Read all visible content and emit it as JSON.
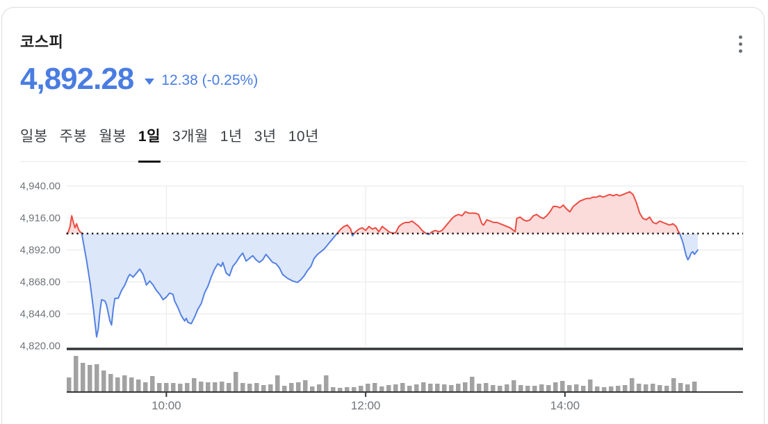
{
  "header": {
    "title": "코스피",
    "price": "4,892.28",
    "change": "12.38 (-0.25%)",
    "direction": "down",
    "accent_color": "#4a7de2"
  },
  "menu": {
    "more_icon": "kebab-vertical-three-dots"
  },
  "tabs": {
    "items": [
      {
        "label": "일봉",
        "active": false
      },
      {
        "label": "주봉",
        "active": false
      },
      {
        "label": "월봉",
        "active": false
      },
      {
        "label": "1일",
        "active": true
      },
      {
        "label": "3개월",
        "active": false
      },
      {
        "label": "1년",
        "active": false
      },
      {
        "label": "3년",
        "active": false
      },
      {
        "label": "10년",
        "active": false
      }
    ]
  },
  "chart_data": {
    "type": "line",
    "subtype": "intraday-vs-prev-close-with-volume",
    "prev_close": 4904.66,
    "last_price": 4892.28,
    "x_unit": "minutes_from_09:00",
    "x_range": [
      0,
      380
    ],
    "x_ticks": [
      {
        "label": "10:00",
        "t": 60
      },
      {
        "label": "12:00",
        "t": 180
      },
      {
        "label": "14:00",
        "t": 300
      }
    ],
    "y_ticks": [
      {
        "label": "4,940.00",
        "value": 4940
      },
      {
        "label": "4,916.00",
        "value": 4916
      },
      {
        "label": "4,892.00",
        "value": 4892
      },
      {
        "label": "4,868.00",
        "value": 4868
      },
      {
        "label": "4,844.00",
        "value": 4844
      },
      {
        "label": "4,820.00",
        "value": 4820
      }
    ],
    "grid": true,
    "baseline_style": "dotted",
    "colors": {
      "above_line": "#ee4b42",
      "above_fill": "#fbdcda",
      "below_line": "#5381e2",
      "below_fill": "#dce7fa",
      "gridline": "#ececec",
      "axis_dark": "#323538",
      "volume_bar": "#a2a2a2",
      "tick_label": "#70757a",
      "baseline_dot": "#141414"
    },
    "points": [
      [
        0,
        4904.5
      ],
      [
        1,
        4906
      ],
      [
        2,
        4910
      ],
      [
        3,
        4918
      ],
      [
        4,
        4913
      ],
      [
        5,
        4909
      ],
      [
        6,
        4912
      ],
      [
        7,
        4908
      ],
      [
        8,
        4906
      ],
      [
        9,
        4905
      ],
      [
        10,
        4898
      ],
      [
        12,
        4884
      ],
      [
        14,
        4868
      ],
      [
        16,
        4849
      ],
      [
        17,
        4838
      ],
      [
        18,
        4827
      ],
      [
        19,
        4833
      ],
      [
        20,
        4846
      ],
      [
        21,
        4855
      ],
      [
        23,
        4854
      ],
      [
        24,
        4851
      ],
      [
        25,
        4845
      ],
      [
        26,
        4839
      ],
      [
        27,
        4836
      ],
      [
        28,
        4848
      ],
      [
        29,
        4856
      ],
      [
        31,
        4856
      ],
      [
        33,
        4862
      ],
      [
        35,
        4866
      ],
      [
        37,
        4872
      ],
      [
        38,
        4874
      ],
      [
        40,
        4872
      ],
      [
        42,
        4875
      ],
      [
        44,
        4878
      ],
      [
        46,
        4874
      ],
      [
        48,
        4866
      ],
      [
        50,
        4869
      ],
      [
        52,
        4866
      ],
      [
        54,
        4862
      ],
      [
        56,
        4859
      ],
      [
        58,
        4855
      ],
      [
        60,
        4857
      ],
      [
        62,
        4860
      ],
      [
        64,
        4859
      ],
      [
        65,
        4854
      ],
      [
        67,
        4849
      ],
      [
        69,
        4843
      ],
      [
        71,
        4839
      ],
      [
        72,
        4841
      ],
      [
        73,
        4838
      ],
      [
        75,
        4837
      ],
      [
        77,
        4842
      ],
      [
        79,
        4848
      ],
      [
        81,
        4852
      ],
      [
        83,
        4860
      ],
      [
        85,
        4865
      ],
      [
        87,
        4872
      ],
      [
        89,
        4878
      ],
      [
        91,
        4882
      ],
      [
        93,
        4880
      ],
      [
        94,
        4883
      ],
      [
        96,
        4875
      ],
      [
        98,
        4873
      ],
      [
        100,
        4880
      ],
      [
        102,
        4883
      ],
      [
        104,
        4887
      ],
      [
        106,
        4890
      ],
      [
        108,
        4884
      ],
      [
        110,
        4886
      ],
      [
        112,
        4888
      ],
      [
        114,
        4885
      ],
      [
        116,
        4883
      ],
      [
        118,
        4885
      ],
      [
        120,
        4889
      ],
      [
        122,
        4886
      ],
      [
        124,
        4883
      ],
      [
        126,
        4882
      ],
      [
        128,
        4879
      ],
      [
        130,
        4874
      ],
      [
        133,
        4871
      ],
      [
        136,
        4869
      ],
      [
        139,
        4868
      ],
      [
        141,
        4870
      ],
      [
        143,
        4873
      ],
      [
        145,
        4877
      ],
      [
        147,
        4880
      ],
      [
        149,
        4886
      ],
      [
        151,
        4889
      ],
      [
        153,
        4891
      ],
      [
        155,
        4893
      ],
      [
        157,
        4896
      ],
      [
        159,
        4899
      ],
      [
        161,
        4902
      ],
      [
        163,
        4905
      ],
      [
        165,
        4908
      ],
      [
        167,
        4910
      ],
      [
        169,
        4911
      ],
      [
        171,
        4908
      ],
      [
        172,
        4903
      ],
      [
        174,
        4906
      ],
      [
        176,
        4908
      ],
      [
        178,
        4909
      ],
      [
        180,
        4907
      ],
      [
        182,
        4910
      ],
      [
        184,
        4908
      ],
      [
        186,
        4909
      ],
      [
        188,
        4906
      ],
      [
        190,
        4910
      ],
      [
        192,
        4908
      ],
      [
        194,
        4906
      ],
      [
        196,
        4905
      ],
      [
        198,
        4905
      ],
      [
        200,
        4910
      ],
      [
        202,
        4912
      ],
      [
        204,
        4913
      ],
      [
        206,
        4913
      ],
      [
        208,
        4914
      ],
      [
        210,
        4912
      ],
      [
        212,
        4910
      ],
      [
        214,
        4907
      ],
      [
        216,
        4905
      ],
      [
        218,
        4904
      ],
      [
        220,
        4906
      ],
      [
        222,
        4907
      ],
      [
        224,
        4906
      ],
      [
        226,
        4907
      ],
      [
        228,
        4910
      ],
      [
        230,
        4913
      ],
      [
        232,
        4916
      ],
      [
        234,
        4918
      ],
      [
        236,
        4919
      ],
      [
        238,
        4918
      ],
      [
        240,
        4921
      ],
      [
        242,
        4920
      ],
      [
        244,
        4920
      ],
      [
        246,
        4920
      ],
      [
        248,
        4919
      ],
      [
        250,
        4912
      ],
      [
        251,
        4911
      ],
      [
        253,
        4915
      ],
      [
        255,
        4914
      ],
      [
        257,
        4913
      ],
      [
        259,
        4913
      ],
      [
        261,
        4912
      ],
      [
        263,
        4911
      ],
      [
        265,
        4910
      ],
      [
        267,
        4909
      ],
      [
        269,
        4907
      ],
      [
        270,
        4906
      ],
      [
        271,
        4916
      ],
      [
        273,
        4917
      ],
      [
        275,
        4915
      ],
      [
        277,
        4914
      ],
      [
        279,
        4915
      ],
      [
        281,
        4918
      ],
      [
        283,
        4919
      ],
      [
        285,
        4917
      ],
      [
        287,
        4916
      ],
      [
        289,
        4918
      ],
      [
        291,
        4921
      ],
      [
        293,
        4925
      ],
      [
        295,
        4925
      ],
      [
        297,
        4924
      ],
      [
        299,
        4926
      ],
      [
        301,
        4923
      ],
      [
        303,
        4921
      ],
      [
        305,
        4925
      ],
      [
        307,
        4927
      ],
      [
        309,
        4929
      ],
      [
        311,
        4930
      ],
      [
        313,
        4931
      ],
      [
        315,
        4931
      ],
      [
        317,
        4932
      ],
      [
        319,
        4932
      ],
      [
        321,
        4933
      ],
      [
        323,
        4932
      ],
      [
        325,
        4933
      ],
      [
        327,
        4934
      ],
      [
        329,
        4933
      ],
      [
        331,
        4934
      ],
      [
        333,
        4933
      ],
      [
        335,
        4934
      ],
      [
        337,
        4935
      ],
      [
        339,
        4936
      ],
      [
        341,
        4934
      ],
      [
        343,
        4928
      ],
      [
        345,
        4920
      ],
      [
        347,
        4916
      ],
      [
        349,
        4915
      ],
      [
        351,
        4917
      ],
      [
        353,
        4913
      ],
      [
        355,
        4912
      ],
      [
        357,
        4914
      ],
      [
        359,
        4913
      ],
      [
        361,
        4912
      ],
      [
        363,
        4911
      ],
      [
        365,
        4912
      ],
      [
        367,
        4910
      ],
      [
        368,
        4907
      ],
      [
        369,
        4905
      ],
      [
        371,
        4898
      ],
      [
        373,
        4888
      ],
      [
        374,
        4885
      ],
      [
        375,
        4887
      ],
      [
        376,
        4890
      ],
      [
        377,
        4891
      ],
      [
        378,
        4889
      ],
      [
        380,
        4892.28
      ]
    ],
    "volume_bars": [
      21,
      52,
      42,
      39,
      40,
      31,
      26,
      21,
      24,
      21,
      18,
      14,
      23,
      13,
      13,
      13,
      12,
      13,
      20,
      15,
      14,
      14,
      15,
      13,
      29,
      13,
      12,
      13,
      10,
      11,
      24,
      9,
      13,
      14,
      17,
      8,
      11,
      24,
      7,
      6,
      7,
      7,
      9,
      12,
      13,
      8,
      10,
      11,
      13,
      9,
      11,
      14,
      12,
      12,
      11,
      10,
      12,
      14,
      22,
      12,
      13,
      10,
      9,
      11,
      17,
      10,
      9,
      9,
      11,
      10,
      14,
      16,
      10,
      11,
      9,
      18,
      8,
      7,
      8,
      9,
      10,
      20,
      12,
      11,
      12,
      10,
      9,
      20,
      13,
      11,
      15
    ]
  }
}
